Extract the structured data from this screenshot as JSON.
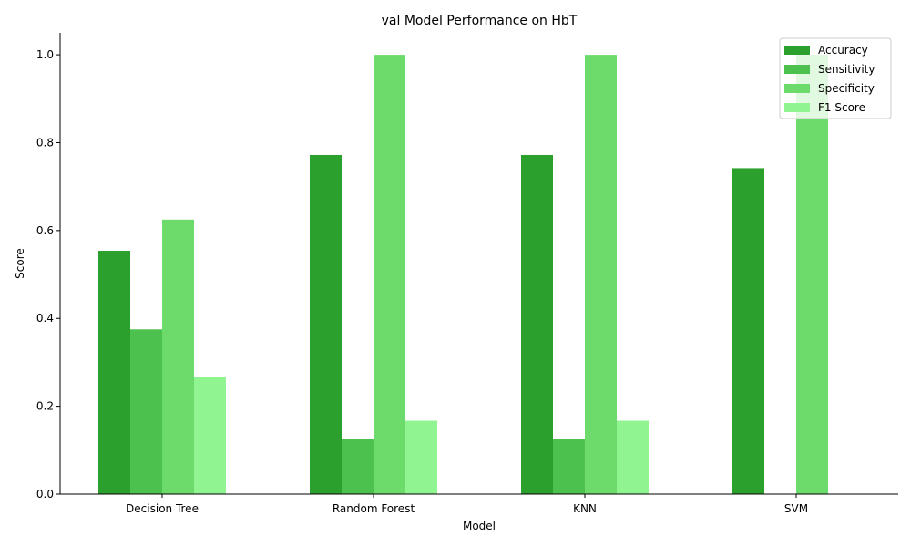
{
  "chart_data": {
    "type": "bar",
    "title": "val Model Performance on HbT",
    "xlabel": "Model",
    "ylabel": "Score",
    "ylim": [
      0,
      1.05
    ],
    "yticks": [
      "0.0",
      "0.2",
      "0.4",
      "0.6",
      "0.8",
      "1.0"
    ],
    "categories": [
      "Decision Tree",
      "Random Forest",
      "KNN",
      "SVM"
    ],
    "series": [
      {
        "name": "Accuracy",
        "color": "#2ca02c",
        "values": [
          0.554,
          0.772,
          0.772,
          0.742
        ]
      },
      {
        "name": "Sensitivity",
        "color": "#4dc14d",
        "values": [
          0.375,
          0.125,
          0.125,
          0.0
        ]
      },
      {
        "name": "Specificity",
        "color": "#6cdb6c",
        "values": [
          0.625,
          1.0,
          1.0,
          1.0
        ]
      },
      {
        "name": "F1 Score",
        "color": "#90f590",
        "values": [
          0.267,
          0.167,
          0.167,
          0.0
        ]
      }
    ],
    "legend_position": "top-right",
    "grid": false
  }
}
